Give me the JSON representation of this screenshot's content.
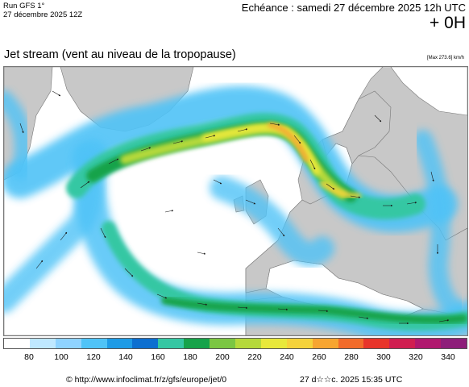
{
  "header": {
    "run_line": "Run GFS 1°",
    "run_date": "27 décembre 2025 12Z",
    "echeance": "Echéance : samedi 27 décembre 2025 12h UTC",
    "offset": "+ 0H"
  },
  "map": {
    "title": "Jet stream (vent au niveau de la tropopause)",
    "max_label": "[Max 273.6] km/h",
    "land_color": "#c8c8c8",
    "coast_color": "#777777",
    "arrow_color": "#1a1a1a"
  },
  "legend": {
    "ticks": [
      "80",
      "100",
      "120",
      "140",
      "160",
      "180",
      "200",
      "220",
      "240",
      "260",
      "280",
      "300",
      "320",
      "340"
    ],
    "colors": [
      "#ffffff",
      "#bfe8ff",
      "#8fd3ff",
      "#4fc3f7",
      "#1e9be6",
      "#0d6fd0",
      "#35c7a3",
      "#16a34a",
      "#7bc642",
      "#b5d93a",
      "#e8e83a",
      "#f5d23a",
      "#f7a530",
      "#f26b2a",
      "#e8342a",
      "#d01e50",
      "#b0186e",
      "#8e1e7a"
    ]
  },
  "footer": {
    "url": "© http://www.infoclimat.fr/z/gfs/europe/jet/0",
    "generated": "27 d☆☆c. 2025 15:35 UTC"
  }
}
